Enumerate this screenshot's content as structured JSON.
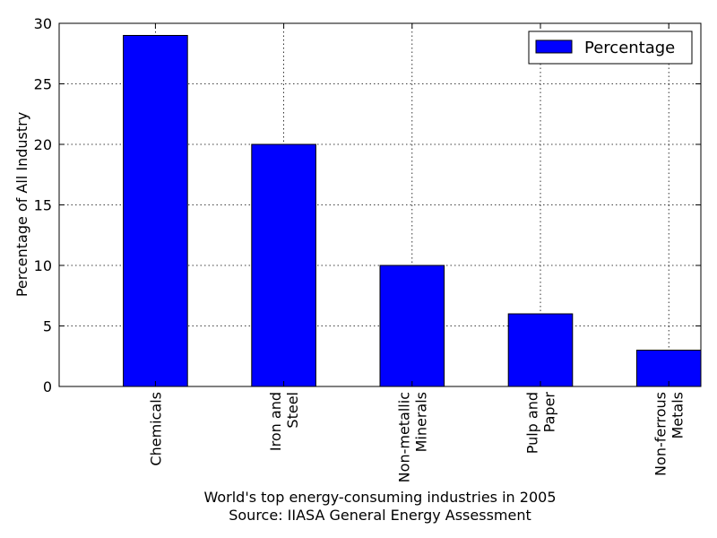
{
  "chart_data": {
    "type": "bar",
    "categories": [
      [
        "Chemicals"
      ],
      [
        "Iron and",
        "Steel"
      ],
      [
        "Non-metallic",
        "Minerals"
      ],
      [
        "Pulp and",
        "Paper"
      ],
      [
        "Non-ferrous",
        "Metals"
      ]
    ],
    "series": [
      {
        "name": "Percentage",
        "values": [
          29,
          20,
          10,
          6,
          3
        ],
        "color": "#0000ff"
      }
    ],
    "ylabel": "Percentage of All Industry",
    "xlabel": [
      "World's top energy-consuming industries in 2005",
      "Source: IIASA General Energy Assessment"
    ],
    "ylim": [
      0,
      30
    ],
    "yticks": [
      0,
      5,
      10,
      15,
      20,
      25,
      30
    ],
    "grid": true,
    "legend_position": "top-right"
  }
}
